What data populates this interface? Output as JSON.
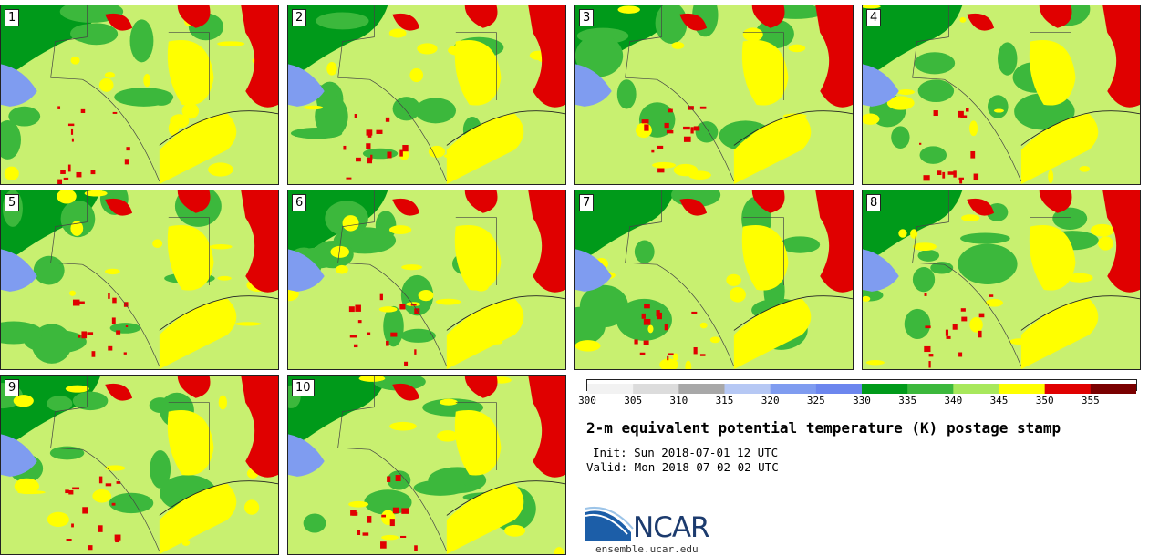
{
  "panels": [
    "1",
    "2",
    "3",
    "4",
    "5",
    "6",
    "7",
    "8",
    "9",
    "10"
  ],
  "colorbar": {
    "ticks": [
      "300",
      "305",
      "310",
      "315",
      "320",
      "325",
      "330",
      "335",
      "340",
      "345",
      "350",
      "355"
    ],
    "colors": [
      "#f2f2f2",
      "#dcdcdc",
      "#a8a8a8",
      "#b6c8f4",
      "#7f9cf0",
      "#6c86ee",
      "#009a1a",
      "#3cb83c",
      "#a8e85c",
      "#ffff00",
      "#e00000",
      "#7a0000"
    ]
  },
  "title": "2-m equivalent potential temperature (K) postage stamp",
  "init_line": "Init: Sun 2018-07-01 12 UTC",
  "valid_line": "Valid: Mon 2018-07-02 02 UTC",
  "logo": {
    "name": "NCAR",
    "url": "ensemble.ucar.edu"
  }
}
